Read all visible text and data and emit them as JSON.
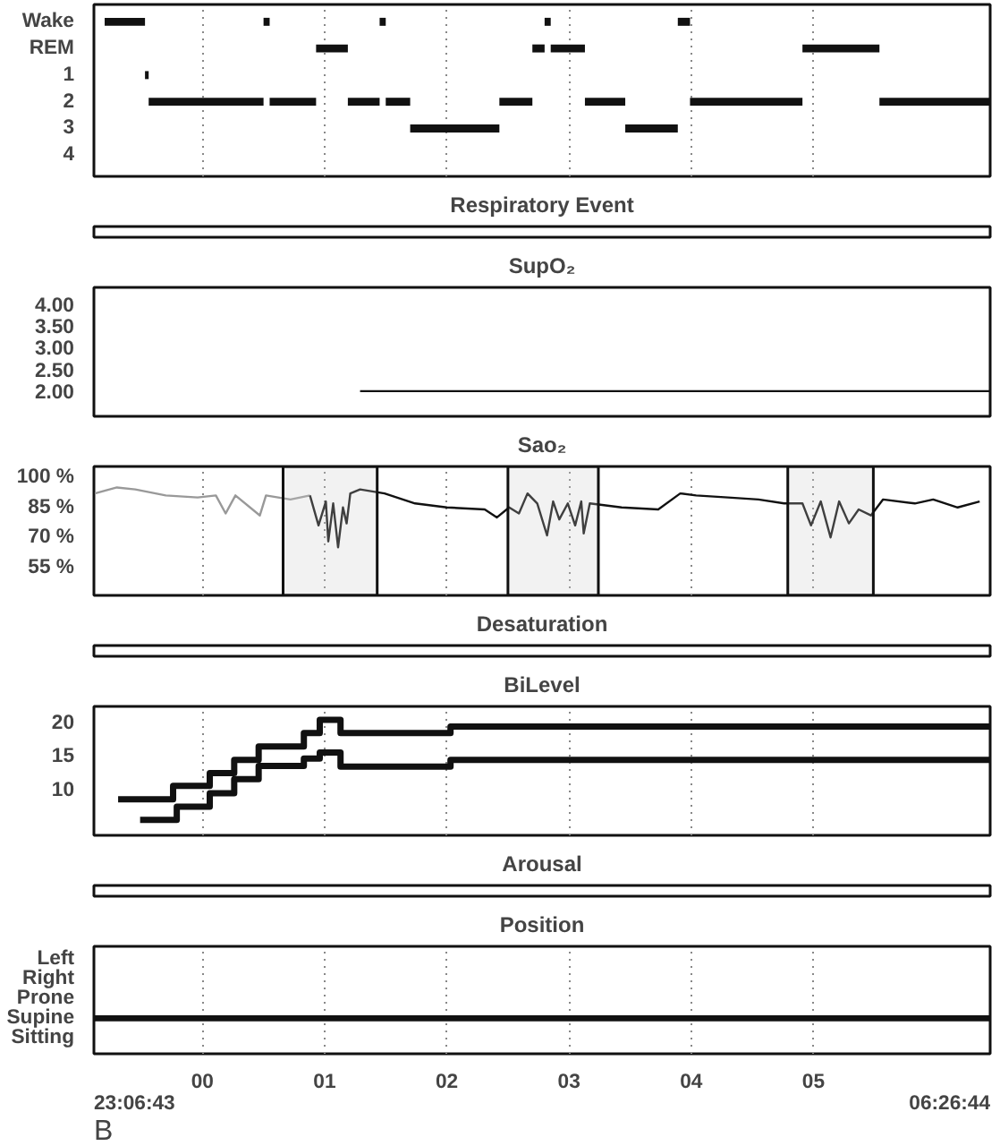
{
  "chart_data": [
    {
      "type": "bar",
      "orientation": "horizontal",
      "categories": [
        "Wake",
        "REM",
        "1",
        "2",
        "3",
        "4"
      ],
      "xlim": [
        -0.888,
        6.446
      ],
      "xticks": [
        {
          "value": -0.888,
          "label": null
        },
        {
          "value": 0,
          "label": null
        },
        {
          "value": 1,
          "label": null
        },
        {
          "value": 2,
          "label": null
        },
        {
          "value": 3,
          "label": null
        },
        {
          "value": 4,
          "label": null
        },
        {
          "value": 5,
          "label": null
        },
        {
          "value": 6.446,
          "label": null
        }
      ],
      "tick_labels": "y",
      "grid": "x",
      "series": [
        {
          "color": "#111111",
          "base": [
            -0.8,
            0.93,
            -0.47,
            -0.44,
            1.7,
            null
          ],
          "values": [
            0.33,
            0.26,
            0.03,
            0.94,
            0.73,
            null
          ]
        },
        {
          "color": "#111111",
          "base": [
            0.5,
            2.7,
            null,
            0.55,
            3.46,
            null
          ],
          "values": [
            0.05,
            0.1,
            null,
            0.38,
            0.43,
            null
          ]
        },
        {
          "color": "#111111",
          "base": [
            1.45,
            2.85,
            null,
            1.19,
            null,
            null
          ],
          "values": [
            0.05,
            0.28,
            null,
            0.26,
            null,
            null
          ]
        },
        {
          "color": "#111111",
          "base": [
            2.8,
            4.91,
            null,
            1.5,
            null,
            null
          ],
          "values": [
            0.05,
            0.63,
            null,
            0.2,
            null,
            null
          ]
        },
        {
          "color": "#111111",
          "base": [
            3.89,
            null,
            null,
            2.43,
            null,
            null
          ],
          "values": [
            0.1,
            null,
            null,
            0.27,
            null,
            null
          ]
        },
        {
          "color": "#111111",
          "base": [
            null,
            null,
            null,
            3.13,
            null,
            null
          ],
          "values": [
            null,
            null,
            null,
            0.33,
            null,
            null
          ]
        },
        {
          "color": "#111111",
          "base": [
            null,
            null,
            null,
            3.99,
            null,
            null
          ],
          "values": [
            null,
            null,
            null,
            0.92,
            null,
            null
          ]
        },
        {
          "color": "#111111",
          "base": [
            null,
            null,
            null,
            5.54,
            null,
            null
          ],
          "values": [
            null,
            null,
            null,
            0.9,
            null,
            null
          ]
        }
      ]
    },
    {
      "type": "other",
      "title": "Respiratory Event"
    },
    {
      "type": "line",
      "title": "SupO₂",
      "xlim": [
        -0.888,
        6.446
      ],
      "xticks": [
        {
          "value": -0.888,
          "label": null
        },
        {
          "value": 0,
          "label": null
        },
        {
          "value": 1,
          "label": null
        },
        {
          "value": 2,
          "label": null
        },
        {
          "value": 3,
          "label": null
        },
        {
          "value": 4,
          "label": null
        },
        {
          "value": 5,
          "label": null
        },
        {
          "value": 6.446,
          "label": null
        }
      ],
      "ylim": [
        1.42,
        4.39
      ],
      "yticks": [
        {
          "value": 2,
          "label": "2.00"
        },
        {
          "value": 2.5,
          "label": "2.50"
        },
        {
          "value": 3,
          "label": "3.00"
        },
        {
          "value": 3.5,
          "label": "3.50"
        },
        {
          "value": 4,
          "label": "4.00"
        }
      ],
      "tick_labels": "y",
      "series": [
        {
          "color": "#111111",
          "x": [
            1.29,
            6.446
          ],
          "values": [
            2.0,
            2.0
          ]
        }
      ]
    },
    {
      "type": "line",
      "title": "Sao₂",
      "xlim": [
        -0.888,
        6.446
      ],
      "xticks": [
        {
          "value": -0.888,
          "label": null
        },
        {
          "value": 0,
          "label": null
        },
        {
          "value": 1,
          "label": null
        },
        {
          "value": 2,
          "label": null
        },
        {
          "value": 3,
          "label": null
        },
        {
          "value": 4,
          "label": null
        },
        {
          "value": 5,
          "label": null
        },
        {
          "value": 6.446,
          "label": null
        }
      ],
      "ylim": [
        41,
        105.5
      ],
      "yticks": [
        {
          "value": 55,
          "label": "55 %"
        },
        {
          "value": 70,
          "label": "70 %"
        },
        {
          "value": 85,
          "label": "85 %"
        },
        {
          "value": 100,
          "label": "100 %"
        }
      ],
      "tick_labels": "y",
      "grid": "x",
      "bands": [
        {
          "axis": "x",
          "from": 0.66,
          "to": 1.43
        },
        {
          "axis": "x",
          "from": 2.5,
          "to": 3.24
        },
        {
          "axis": "x",
          "from": 4.79,
          "to": 5.49
        }
      ],
      "series": [
        {
          "color": "#999999",
          "x": [
            -0.88,
            -0.7,
            -0.55,
            -0.3,
            -0.04,
            0.11,
            0.19,
            0.27,
            0.47,
            0.52,
            0.72,
            0.88
          ],
          "values": [
            92,
            95,
            94,
            91,
            90,
            91,
            82,
            91,
            81,
            91,
            89,
            91
          ]
        },
        {
          "color": "#111111",
          "x": [
            0.88,
            0.95,
            1.01,
            1.03,
            1.07,
            1.11,
            1.15,
            1.18,
            1.21,
            1.29,
            1.49,
            1.74,
            2.0,
            2.31,
            2.41,
            2.51,
            2.59,
            2.66,
            2.74,
            2.82,
            2.87,
            2.92,
            2.99,
            3.05,
            3.1,
            3.12,
            3.17,
            3.43,
            3.73,
            3.91,
            4.04,
            4.3,
            4.55,
            4.76,
            4.91,
            4.98,
            5.06,
            5.14,
            5.21,
            5.29,
            5.37,
            5.47,
            5.57,
            5.83,
            5.98,
            6.18,
            6.36
          ],
          "values": [
            91,
            76,
            88,
            68,
            87,
            65,
            85,
            77,
            92,
            94,
            92,
            87,
            85,
            84,
            80,
            85,
            82,
            92,
            87,
            71,
            88,
            79,
            87,
            76,
            88,
            72,
            87,
            85,
            84,
            92,
            91,
            90,
            89,
            87,
            87,
            76,
            88,
            70,
            88,
            77,
            84,
            81,
            89,
            87,
            89,
            85,
            88
          ]
        }
      ]
    },
    {
      "type": "other",
      "title": "Desaturation"
    },
    {
      "type": "step",
      "title": "BiLevel",
      "xlim": [
        -0.888,
        6.446
      ],
      "xticks": [
        {
          "value": -0.888,
          "label": null
        },
        {
          "value": 0,
          "label": null
        },
        {
          "value": 1,
          "label": null
        },
        {
          "value": 2,
          "label": null
        },
        {
          "value": 3,
          "label": null
        },
        {
          "value": 4,
          "label": null
        },
        {
          "value": 5,
          "label": null
        },
        {
          "value": 6.446,
          "label": null
        }
      ],
      "ylim": [
        3,
        22.3
      ],
      "yticks": [
        10,
        15,
        20
      ],
      "tick_labels": "y",
      "grid": "x",
      "series": [
        {
          "color": "#111111",
          "x": [
            -0.69,
            -0.24,
            0.06,
            0.26,
            0.46,
            0.83,
            0.96,
            1.13,
            2.03,
            6.446
          ],
          "values": [
            8.4,
            10.4,
            12.3,
            14.3,
            16.3,
            18.3,
            20.3,
            18.3,
            19.3,
            19.3
          ]
        },
        {
          "color": "#111111",
          "x": [
            -0.51,
            -0.21,
            0.06,
            0.26,
            0.46,
            0.83,
            0.96,
            1.13,
            2.03,
            6.446
          ],
          "values": [
            5.3,
            7.3,
            9.3,
            11.4,
            13.4,
            14.5,
            15.4,
            13.3,
            14.3,
            14.3
          ]
        }
      ]
    },
    {
      "type": "other",
      "title": "Arousal"
    },
    {
      "type": "bar",
      "orientation": "horizontal",
      "title": "Position",
      "categories": [
        "Left",
        "Right",
        "Prone",
        "Supine",
        "Sitting"
      ],
      "xlim": [
        -0.888,
        6.446
      ],
      "xticks": [
        {
          "value": -0.888,
          "label": null
        },
        {
          "value": 0,
          "label": "00"
        },
        {
          "value": 1,
          "label": "01"
        },
        {
          "value": 2,
          "label": "02"
        },
        {
          "value": 3,
          "label": "03"
        },
        {
          "value": 4,
          "label": "04"
        },
        {
          "value": 5,
          "label": "05"
        },
        {
          "value": 6.446,
          "label": null
        }
      ],
      "grid": "x",
      "annotations": [
        "23:06:43",
        "06:26:44",
        "B"
      ],
      "series": [
        {
          "color": "#111111",
          "base": [
            null,
            null,
            null,
            -0.888,
            null
          ],
          "values": [
            null,
            null,
            null,
            7.33,
            null
          ]
        }
      ]
    }
  ]
}
